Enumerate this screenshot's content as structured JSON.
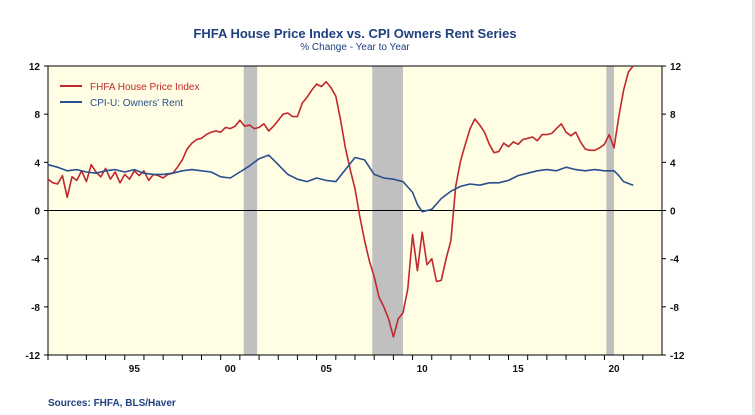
{
  "chart_data": {
    "type": "line",
    "title": "FHFA House Price Index vs. CPI Owners Rent Series",
    "subtitle": "% Change - Year to Year",
    "source": "Sources: FHFA, BLS/Haver",
    "ylim": [
      -12,
      12
    ],
    "y_ticks": [
      12,
      8,
      4,
      0,
      -4,
      -8,
      -12
    ],
    "y_tick_labels": [
      "12",
      "8",
      "4",
      "0",
      "-4",
      "-8",
      "-12"
    ],
    "xlim": [
      1991.0,
      2023.0
    ],
    "x_ticks": [
      1995,
      2000,
      2005,
      2010,
      2015,
      2020
    ],
    "x_tick_labels": [
      "95",
      "00",
      "05",
      "10",
      "15",
      "20"
    ],
    "legend": {
      "position": "top-left"
    },
    "recessions": [
      [
        2001.2,
        2001.9
      ],
      [
        2007.9,
        2009.5
      ],
      [
        2020.1,
        2020.5
      ]
    ],
    "colors": {
      "plot_bg": "#fffde3",
      "recession": "#c0c0c0",
      "hpi": "#c0282d",
      "rent": "#2a4f8f",
      "text_blue": "#1f3f7f"
    },
    "series": [
      {
        "name": "FHFA House Price Index",
        "color": "#c0282d",
        "x": [
          1991.0,
          1991.25,
          1991.5,
          1991.75,
          1992.0,
          1992.25,
          1992.5,
          1992.75,
          1993.0,
          1993.25,
          1993.5,
          1993.75,
          1994.0,
          1994.25,
          1994.5,
          1994.75,
          1995.0,
          1995.25,
          1995.5,
          1995.75,
          1996.0,
          1996.25,
          1996.5,
          1996.75,
          1997.0,
          1997.25,
          1997.5,
          1997.75,
          1998.0,
          1998.25,
          1998.5,
          1998.75,
          1999.0,
          1999.25,
          1999.5,
          1999.75,
          2000.0,
          2000.25,
          2000.5,
          2000.75,
          2001.0,
          2001.25,
          2001.5,
          2001.75,
          2002.0,
          2002.25,
          2002.5,
          2002.75,
          2003.0,
          2003.25,
          2003.5,
          2003.75,
          2004.0,
          2004.25,
          2004.5,
          2004.75,
          2005.0,
          2005.25,
          2005.5,
          2005.75,
          2006.0,
          2006.25,
          2006.5,
          2006.75,
          2007.0,
          2007.25,
          2007.5,
          2007.75,
          2008.0,
          2008.25,
          2008.5,
          2008.75,
          2009.0,
          2009.25,
          2009.5,
          2009.75,
          2010.0,
          2010.25,
          2010.5,
          2010.75,
          2011.0,
          2011.25,
          2011.5,
          2011.75,
          2012.0,
          2012.25,
          2012.5,
          2012.75,
          2013.0,
          2013.25,
          2013.5,
          2013.75,
          2014.0,
          2014.25,
          2014.5,
          2014.75,
          2015.0,
          2015.25,
          2015.5,
          2015.75,
          2016.0,
          2016.25,
          2016.5,
          2016.75,
          2017.0,
          2017.25,
          2017.5,
          2017.75,
          2018.0,
          2018.25,
          2018.5,
          2018.75,
          2019.0,
          2019.25,
          2019.5,
          2019.75,
          2020.0,
          2020.25,
          2020.5,
          2020.75,
          2021.0,
          2021.25,
          2021.5
        ],
        "y": [
          2.6,
          2.3,
          2.2,
          2.9,
          1.1,
          2.8,
          2.5,
          3.3,
          2.4,
          3.8,
          3.2,
          2.8,
          3.5,
          2.6,
          3.2,
          2.3,
          3.0,
          2.6,
          3.3,
          2.9,
          3.3,
          2.5,
          3.0,
          2.9,
          2.7,
          3.0,
          3.1,
          3.6,
          4.2,
          5.1,
          5.6,
          5.9,
          6.0,
          6.3,
          6.5,
          6.6,
          6.5,
          6.9,
          6.8,
          7.0,
          7.5,
          7.0,
          7.1,
          6.8,
          6.9,
          7.2,
          6.6,
          7.0,
          7.5,
          8.0,
          8.1,
          7.8,
          7.8,
          8.9,
          9.4,
          10.0,
          10.5,
          10.3,
          10.7,
          10.2,
          9.5,
          7.5,
          5.2,
          3.4,
          1.8,
          -0.5,
          -2.5,
          -4.2,
          -5.5,
          -7.2,
          -8.0,
          -9.0,
          -10.5,
          -9.0,
          -8.5,
          -6.5,
          -2.0,
          -5.0,
          -1.8,
          -4.5,
          -4.0,
          -5.9,
          -5.8,
          -4.0,
          -2.5,
          2.0,
          4.1,
          5.5,
          6.8,
          7.6,
          7.1,
          6.5,
          5.5,
          4.8,
          4.9,
          5.6,
          5.3,
          5.7,
          5.5,
          5.9,
          6.0,
          6.1,
          5.8,
          6.3,
          6.3,
          6.4,
          6.8,
          7.2,
          6.5,
          6.2,
          6.5,
          5.7,
          5.1,
          5.0,
          5.0,
          5.2,
          5.5,
          6.3,
          5.2,
          7.8,
          10.0,
          11.5,
          12.0
        ],
        "legend_label": "FHFA House Price Index"
      },
      {
        "name": "CPI-U: Owners' Rent",
        "color": "#2a4f8f",
        "x": [
          1991.0,
          1991.5,
          1992.0,
          1992.5,
          1993.0,
          1993.5,
          1994.0,
          1994.5,
          1995.0,
          1995.5,
          1996.0,
          1996.5,
          1997.0,
          1997.5,
          1998.0,
          1998.5,
          1999.0,
          1999.5,
          2000.0,
          2000.5,
          2001.0,
          2001.5,
          2002.0,
          2002.5,
          2003.0,
          2003.5,
          2004.0,
          2004.5,
          2005.0,
          2005.5,
          2006.0,
          2006.5,
          2007.0,
          2007.5,
          2008.0,
          2008.5,
          2009.0,
          2009.5,
          2010.0,
          2010.25,
          2010.5,
          2011.0,
          2011.5,
          2012.0,
          2012.5,
          2013.0,
          2013.5,
          2014.0,
          2014.5,
          2015.0,
          2015.5,
          2016.0,
          2016.5,
          2017.0,
          2017.5,
          2018.0,
          2018.5,
          2019.0,
          2019.5,
          2020.0,
          2020.5,
          2020.75,
          2021.0,
          2021.5
        ],
        "y": [
          3.8,
          3.6,
          3.3,
          3.4,
          3.2,
          3.1,
          3.3,
          3.4,
          3.2,
          3.4,
          3.1,
          3.0,
          3.0,
          3.1,
          3.3,
          3.4,
          3.3,
          3.2,
          2.8,
          2.7,
          3.2,
          3.7,
          4.3,
          4.6,
          3.8,
          3.0,
          2.6,
          2.4,
          2.7,
          2.5,
          2.4,
          3.4,
          4.4,
          4.2,
          3.0,
          2.7,
          2.6,
          2.4,
          1.5,
          0.5,
          -0.1,
          0.1,
          1.0,
          1.6,
          2.0,
          2.2,
          2.1,
          2.3,
          2.3,
          2.5,
          2.9,
          3.1,
          3.3,
          3.4,
          3.3,
          3.6,
          3.4,
          3.3,
          3.4,
          3.3,
          3.3,
          2.9,
          2.4,
          2.1
        ],
        "legend_label": "CPI-U: Owners' Rent"
      }
    ]
  }
}
